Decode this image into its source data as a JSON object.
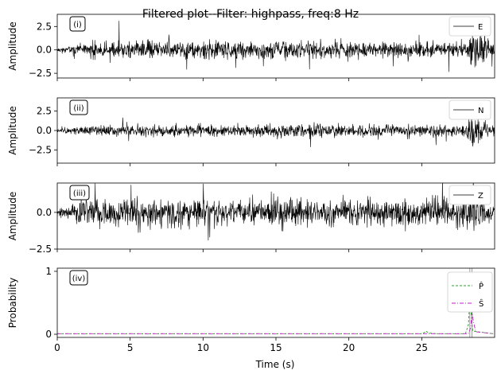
{
  "figure": {
    "title": "Filtered plot--Filter: highpass, freq:8 Hz",
    "xlabel": "Time (s)"
  },
  "colors": {
    "trace": "#000000",
    "p_line": "#2ca02c",
    "s_line": "#c020c0",
    "tick_line": "#888888"
  },
  "chart_data": [
    {
      "type": "line",
      "panel_label": "(i)",
      "ylabel": "Amplitude",
      "legend": "E",
      "legend_position": "top-right",
      "xlim": [
        0,
        30
      ],
      "ylim": [
        -3,
        3.8
      ],
      "yticks": [
        2.5,
        0.0,
        -2.5
      ],
      "ytick_labels": [
        "2.5",
        "0.0",
        "−2.5"
      ],
      "show_xticklabels": false,
      "series": [
        {
          "name": "E",
          "envelope": [
            [
              0.0,
              0.25
            ],
            [
              1.0,
              0.55
            ],
            [
              2.0,
              0.8
            ],
            [
              3.0,
              1.0
            ],
            [
              6.0,
              1.05
            ],
            [
              10.0,
              1.0
            ],
            [
              13.5,
              1.05
            ],
            [
              16.0,
              1.05
            ],
            [
              20.0,
              1.0
            ],
            [
              25.0,
              0.95
            ],
            [
              28.0,
              0.9
            ],
            [
              28.3,
              1.7
            ],
            [
              28.5,
              2.4
            ],
            [
              28.8,
              2.0
            ],
            [
              29.2,
              1.5
            ],
            [
              29.8,
              0.8
            ]
          ],
          "seed": 11
        }
      ]
    },
    {
      "type": "line",
      "panel_label": "(ii)",
      "ylabel": "Amplitude",
      "legend": "N",
      "legend_position": "top-right",
      "xlim": [
        0,
        30
      ],
      "ylim": [
        -4.2,
        4.2
      ],
      "yticks": [
        2.5,
        0.0,
        -2.5
      ],
      "ytick_labels": [
        "2.5",
        "0.0",
        "−2.5"
      ],
      "show_xticklabels": false,
      "series": [
        {
          "name": "N",
          "envelope": [
            [
              0.0,
              0.25
            ],
            [
              1.0,
              0.5
            ],
            [
              3.0,
              0.8
            ],
            [
              5.0,
              0.85
            ],
            [
              13.0,
              0.9
            ],
            [
              13.8,
              1.3
            ],
            [
              15.0,
              0.9
            ],
            [
              20.0,
              0.85
            ],
            [
              25.0,
              0.8
            ],
            [
              28.0,
              0.8
            ],
            [
              28.3,
              2.0
            ],
            [
              28.5,
              3.2
            ],
            [
              28.8,
              2.3
            ],
            [
              29.2,
              1.3
            ],
            [
              29.8,
              0.7
            ]
          ],
          "seed": 23
        }
      ]
    },
    {
      "type": "line",
      "panel_label": "(iii)",
      "ylabel": "Amplitude",
      "legend": "Z",
      "legend_position": "top-right",
      "xlim": [
        0,
        30
      ],
      "ylim": [
        -2.5,
        2.0
      ],
      "yticks": [
        0.0,
        -2.5
      ],
      "ytick_labels": [
        "0.0",
        "−2.5"
      ],
      "show_xticklabels": false,
      "series": [
        {
          "name": "Z",
          "envelope": [
            [
              0.0,
              0.3
            ],
            [
              1.0,
              0.7
            ],
            [
              2.0,
              1.0
            ],
            [
              4.0,
              1.1
            ],
            [
              8.0,
              1.1
            ],
            [
              12.0,
              1.05
            ],
            [
              16.0,
              1.05
            ],
            [
              20.0,
              1.0
            ],
            [
              25.0,
              0.95
            ],
            [
              28.0,
              0.95
            ],
            [
              28.3,
              1.4
            ],
            [
              28.5,
              1.7
            ],
            [
              29.0,
              1.2
            ],
            [
              29.8,
              0.8
            ]
          ],
          "seed": 37
        }
      ]
    },
    {
      "type": "line",
      "panel_label": "(iv)",
      "ylabel": "Probability",
      "legend_position": "top-right",
      "xlim": [
        0,
        30
      ],
      "ylim": [
        -0.05,
        1.05
      ],
      "yticks": [
        1,
        0
      ],
      "ytick_labels": [
        "1",
        "0"
      ],
      "show_xticklabels": true,
      "xticks": [
        0,
        5,
        10,
        15,
        20,
        25
      ],
      "series": [
        {
          "name": "P̂",
          "style": "dashed",
          "color": "#2ca02c",
          "points": [
            [
              0,
              0.01
            ],
            [
              25.0,
              0.01
            ],
            [
              25.2,
              0.03
            ],
            [
              25.3,
              0.05
            ],
            [
              25.45,
              0.02
            ],
            [
              26.0,
              0.01
            ],
            [
              28.0,
              0.01
            ],
            [
              28.2,
              0.15
            ],
            [
              28.3,
              0.55
            ],
            [
              28.4,
              0.3
            ],
            [
              28.5,
              0.05
            ],
            [
              29.9,
              0.01
            ]
          ]
        },
        {
          "name": "Ŝ",
          "style": "dashdot",
          "color": "#c020c0",
          "points": [
            [
              0,
              0.01
            ],
            [
              28.2,
              0.01
            ],
            [
              28.35,
              0.1
            ],
            [
              28.45,
              0.35
            ],
            [
              28.55,
              0.2
            ],
            [
              28.7,
              0.04
            ],
            [
              29.9,
              0.01
            ]
          ]
        }
      ],
      "markers": [
        {
          "x": 28.3,
          "color": "#888888"
        },
        {
          "x": 28.45,
          "color": "#888888"
        }
      ]
    }
  ]
}
